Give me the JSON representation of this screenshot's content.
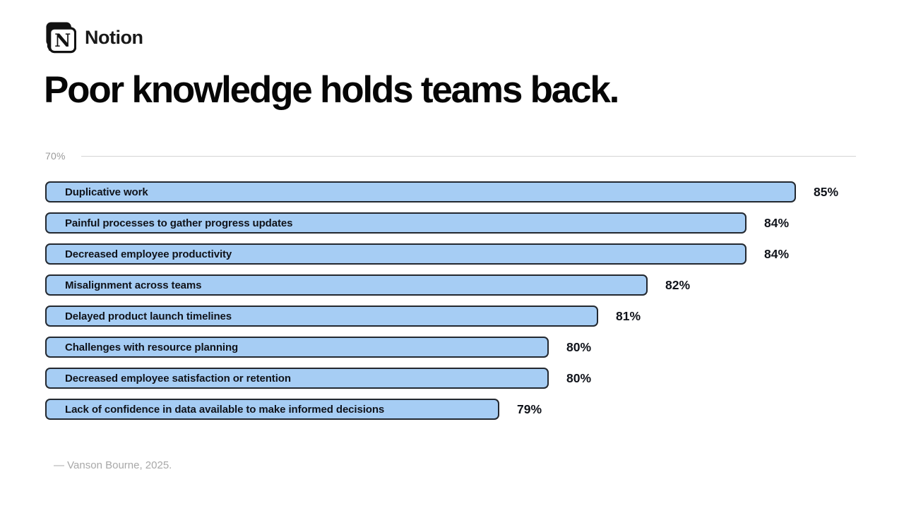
{
  "header": {
    "brand": "Notion",
    "title": "Poor knowledge holds teams back."
  },
  "colors": {
    "bar_fill": "#a6cdf4",
    "bar_border": "#23282f",
    "title_text": "#060606",
    "axis_label_text": "#9a9a9a",
    "axis_line": "#d4d4d4",
    "footer_text": "#a8a8a8"
  },
  "chart_data": {
    "type": "bar",
    "orientation": "horizontal",
    "title": "Poor knowledge holds teams back.",
    "axis_start_label": "70%",
    "axis_min": 70,
    "unit": "%",
    "grid": "single top rule",
    "categories": [
      "Duplicative work",
      "Painful processes to gather progress updates",
      "Decreased employee productivity",
      "Misalignment across teams",
      "Delayed product launch timelines",
      "Challenges with resource planning",
      "Decreased employee satisfaction or retention",
      "Lack of confidence in data available to make informed decisions"
    ],
    "values": [
      85,
      84,
      84,
      82,
      81,
      80,
      80,
      79
    ]
  },
  "footer": {
    "source": "— Vanson Bourne, 2025."
  }
}
